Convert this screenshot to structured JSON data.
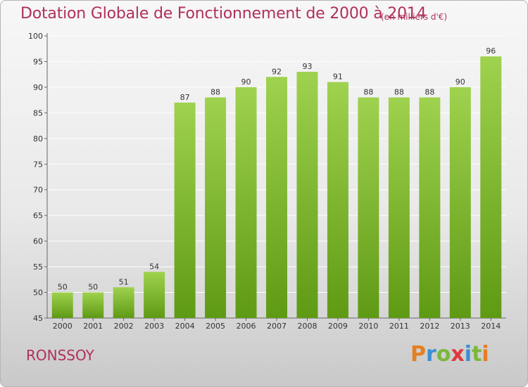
{
  "header": {
    "title": "Dotation Globale de Fonctionnement de 2000 à 2014",
    "unit": "(en milliers d'€)"
  },
  "footer": {
    "commune": "RONSSOY",
    "logo_letters": [
      "P",
      "r",
      "o",
      "x",
      "i",
      "t",
      "i"
    ],
    "logo_colors": [
      "#e67e22",
      "#3a8fd1",
      "#7ab83a",
      "#e0383e",
      "#3a8fd1",
      "#7ab83a",
      "#e67e22"
    ]
  },
  "colors": {
    "bar_light": "#9fd24e",
    "bar_dark": "#5f9a14",
    "text_accent": "#b0305a",
    "grid": "#ffffff"
  },
  "chart_data": {
    "type": "bar",
    "categories": [
      "2000",
      "2001",
      "2002",
      "2003",
      "2004",
      "2005",
      "2006",
      "2007",
      "2008",
      "2009",
      "2010",
      "2011",
      "2012",
      "2013",
      "2014"
    ],
    "values": [
      50,
      50,
      51,
      54,
      87,
      88,
      90,
      92,
      93,
      91,
      88,
      88,
      88,
      90,
      96
    ],
    "yticks": [
      45,
      50,
      55,
      60,
      65,
      70,
      75,
      80,
      85,
      90,
      95,
      100
    ],
    "ylim": [
      45,
      100
    ],
    "grid": true,
    "data_labels": true
  }
}
